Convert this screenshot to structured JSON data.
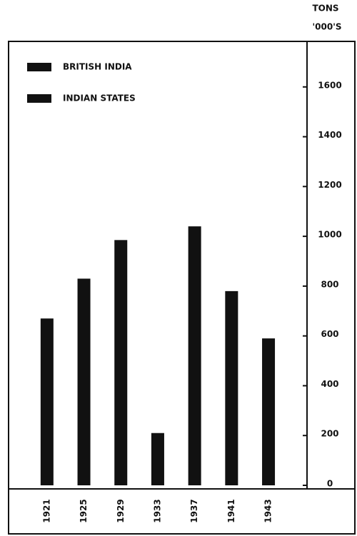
{
  "chart_data": {
    "type": "bar",
    "y_axis_label": [
      "TONS",
      "'000'S"
    ],
    "legend": [
      {
        "name": "BRITISH INDIA",
        "color": "#111111"
      },
      {
        "name": "INDIAN STATES",
        "color": "#111111"
      }
    ],
    "categories": [
      "1921",
      "1925",
      "1929",
      "1933",
      "1937",
      "1941",
      "1943"
    ],
    "values": [
      670,
      830,
      985,
      210,
      1040,
      780,
      590
    ],
    "color": "#111111",
    "ylim": [
      0,
      1800
    ],
    "yticks": [
      0,
      200,
      400,
      600,
      800,
      1000,
      1200,
      1400,
      1600
    ]
  }
}
